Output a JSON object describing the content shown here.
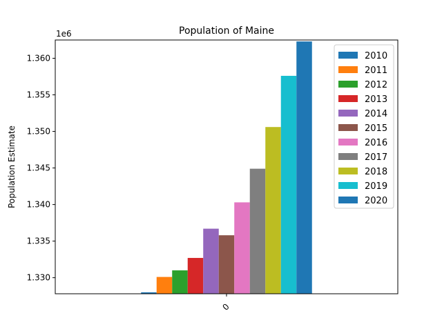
{
  "chart_data": {
    "type": "bar",
    "title": "Population of Maine",
    "xlabel": "",
    "ylabel": "Population Estimate",
    "y_offset_text": "1e6",
    "categories": [
      "0"
    ],
    "ylim": [
      1327800,
      1362500
    ],
    "yticks": [
      1330000,
      1335000,
      1340000,
      1345000,
      1350000,
      1355000,
      1360000
    ],
    "ytick_labels": [
      "1.330",
      "1.335",
      "1.340",
      "1.345",
      "1.350",
      "1.355",
      "1.360"
    ],
    "legend_position": "top-right",
    "grid": false,
    "series": [
      {
        "name": "2010",
        "values": [
          1328000
        ],
        "color": "#1f77b4"
      },
      {
        "name": "2011",
        "values": [
          1330100
        ],
        "color": "#ff7f0e"
      },
      {
        "name": "2012",
        "values": [
          1331000
        ],
        "color": "#2ca02c"
      },
      {
        "name": "2013",
        "values": [
          1332700
        ],
        "color": "#d62728"
      },
      {
        "name": "2014",
        "values": [
          1336700
        ],
        "color": "#9467bd"
      },
      {
        "name": "2015",
        "values": [
          1335800
        ],
        "color": "#8c564b"
      },
      {
        "name": "2016",
        "values": [
          1340300
        ],
        "color": "#e377c2"
      },
      {
        "name": "2017",
        "values": [
          1344900
        ],
        "color": "#7f7f7f"
      },
      {
        "name": "2018",
        "values": [
          1350600
        ],
        "color": "#bcbd22"
      },
      {
        "name": "2019",
        "values": [
          1357600
        ],
        "color": "#17becf"
      },
      {
        "name": "2020",
        "values": [
          1362300
        ],
        "color": "#1f77b4"
      }
    ]
  }
}
